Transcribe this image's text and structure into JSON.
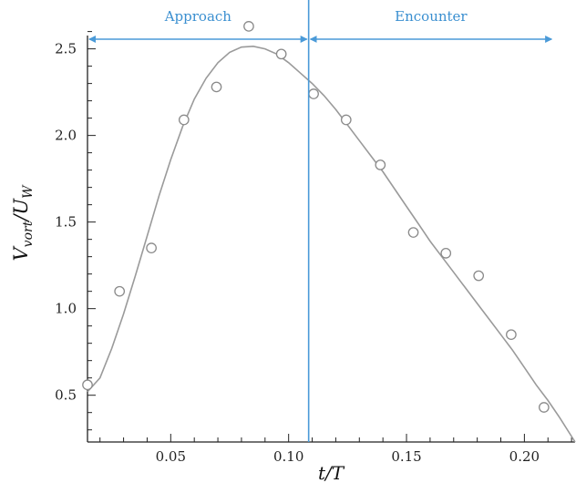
{
  "chart_data": {
    "type": "scatter",
    "xlabel": "t/T",
    "ylabel_parts": {
      "v": "V",
      "vsub": "vort",
      "sep": "/",
      "u": "U",
      "usub": "W"
    },
    "xlim": [
      0.0147,
      0.2215
    ],
    "ylim": [
      0.23,
      2.64
    ],
    "xticks": [
      {
        "value": 0.05,
        "label": "0.05"
      },
      {
        "value": 0.1,
        "label": "0.10"
      },
      {
        "value": 0.15,
        "label": "0.15"
      },
      {
        "value": 0.2,
        "label": "0.20"
      }
    ],
    "yticks": [
      {
        "value": 0.5,
        "label": "0.5"
      },
      {
        "value": 1.0,
        "label": "1.0"
      },
      {
        "value": 1.5,
        "label": "1.5"
      },
      {
        "value": 2.0,
        "label": "2.0"
      },
      {
        "value": 2.5,
        "label": "2.5"
      }
    ],
    "series": [
      {
        "kind": "points",
        "marker": "open-circle",
        "color": "#8a8a8a",
        "points": [
          [
            0.0147,
            0.56
          ],
          [
            0.0283,
            1.1
          ],
          [
            0.0418,
            1.35
          ],
          [
            0.0556,
            2.09
          ],
          [
            0.0694,
            2.28
          ],
          [
            0.0831,
            2.63
          ],
          [
            0.0969,
            2.47
          ],
          [
            0.1106,
            2.24
          ],
          [
            0.1244,
            2.09
          ],
          [
            0.1389,
            1.83
          ],
          [
            0.1529,
            1.44
          ],
          [
            0.1667,
            1.32
          ],
          [
            0.1806,
            1.19
          ],
          [
            0.1944,
            0.85
          ],
          [
            0.2083,
            0.43
          ]
        ]
      },
      {
        "kind": "fit-curve",
        "color": "#9a9a9a",
        "points": [
          [
            0.0147,
            0.52
          ],
          [
            0.02,
            0.6
          ],
          [
            0.025,
            0.77
          ],
          [
            0.03,
            0.97
          ],
          [
            0.035,
            1.19
          ],
          [
            0.04,
            1.42
          ],
          [
            0.045,
            1.65
          ],
          [
            0.05,
            1.86
          ],
          [
            0.055,
            2.05
          ],
          [
            0.06,
            2.21
          ],
          [
            0.065,
            2.33
          ],
          [
            0.07,
            2.42
          ],
          [
            0.075,
            2.48
          ],
          [
            0.08,
            2.51
          ],
          [
            0.085,
            2.515
          ],
          [
            0.09,
            2.5
          ],
          [
            0.095,
            2.47
          ],
          [
            0.1,
            2.42
          ],
          [
            0.105,
            2.36
          ],
          [
            0.11,
            2.3
          ],
          [
            0.115,
            2.23
          ],
          [
            0.12,
            2.15
          ],
          [
            0.125,
            2.06
          ],
          [
            0.13,
            1.97
          ],
          [
            0.135,
            1.88
          ],
          [
            0.14,
            1.79
          ],
          [
            0.145,
            1.69
          ],
          [
            0.15,
            1.59
          ],
          [
            0.155,
            1.49
          ],
          [
            0.16,
            1.39
          ],
          [
            0.165,
            1.3
          ],
          [
            0.17,
            1.21
          ],
          [
            0.175,
            1.12
          ],
          [
            0.18,
            1.03
          ],
          [
            0.185,
            0.94
          ],
          [
            0.19,
            0.85
          ],
          [
            0.195,
            0.76
          ],
          [
            0.2,
            0.66
          ],
          [
            0.205,
            0.56
          ],
          [
            0.21,
            0.47
          ],
          [
            0.215,
            0.37
          ],
          [
            0.2215,
            0.23
          ]
        ]
      }
    ],
    "divider": {
      "x": 0.1085,
      "color": "#4a9ad8"
    },
    "regions": [
      {
        "label": "Approach",
        "from": "left-axis",
        "to": "divider",
        "color": "#4a9ad8"
      },
      {
        "label": "Encounter",
        "from": "divider",
        "to": 0.2115,
        "color": "#4a9ad8"
      }
    ],
    "grid": false,
    "legend": "none"
  }
}
